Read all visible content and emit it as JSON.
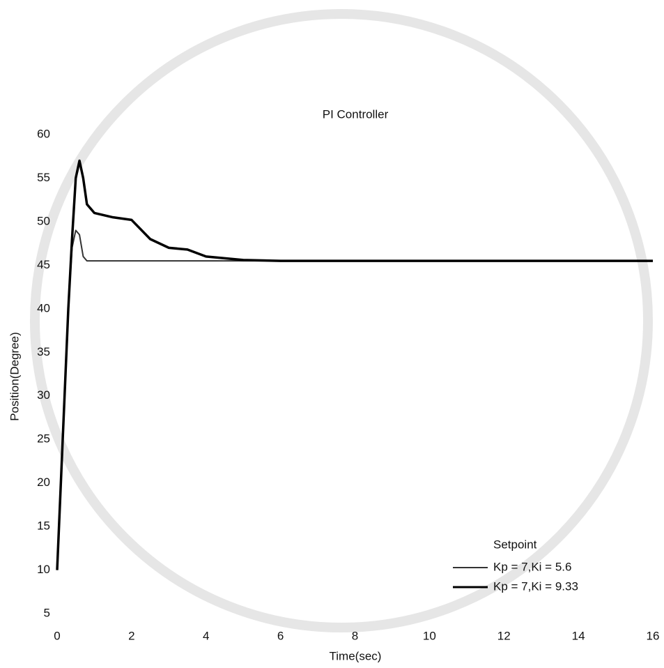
{
  "chart_data": {
    "type": "line",
    "title": "PI Controller",
    "x_label": "Time(sec)",
    "y_label": "Position(Degree)",
    "x": [
      0,
      0.1,
      0.2,
      0.3,
      0.4,
      0.5,
      0.6,
      0.7,
      0.8,
      1,
      1.5,
      2,
      2.5,
      3,
      3.5,
      4,
      5,
      6,
      8,
      10,
      12,
      14,
      16
    ],
    "series": [
      {
        "name": "Kp = 7,Ki = 5.6",
        "color": "#333333",
        "values": [
          10,
          20,
          30,
          40,
          47,
          49,
          48.5,
          46,
          45.5,
          45.5,
          45.5,
          45.5,
          45.5,
          45.5,
          45.5,
          45.5,
          45.5,
          45.5,
          45.5,
          45.5,
          45.5,
          45.5,
          45.5
        ]
      },
      {
        "name": "Kp = 7,Ki = 9.33",
        "color": "#000000",
        "values": [
          10,
          20,
          30,
          40,
          48,
          55,
          57,
          55,
          52,
          51,
          50.5,
          50.2,
          48,
          47,
          46.8,
          46,
          45.6,
          45.5,
          45.5,
          45.5,
          45.5,
          45.5,
          45.5
        ]
      }
    ],
    "legend_title": "Setpoint",
    "xlim": [
      0,
      16
    ],
    "xticks": [
      0,
      2,
      4,
      6,
      8,
      10,
      12,
      14,
      16
    ],
    "ylim": [
      5,
      60
    ],
    "yticks": [
      5,
      10,
      15,
      20,
      25,
      30,
      35,
      40,
      45,
      50,
      55,
      60
    ]
  }
}
